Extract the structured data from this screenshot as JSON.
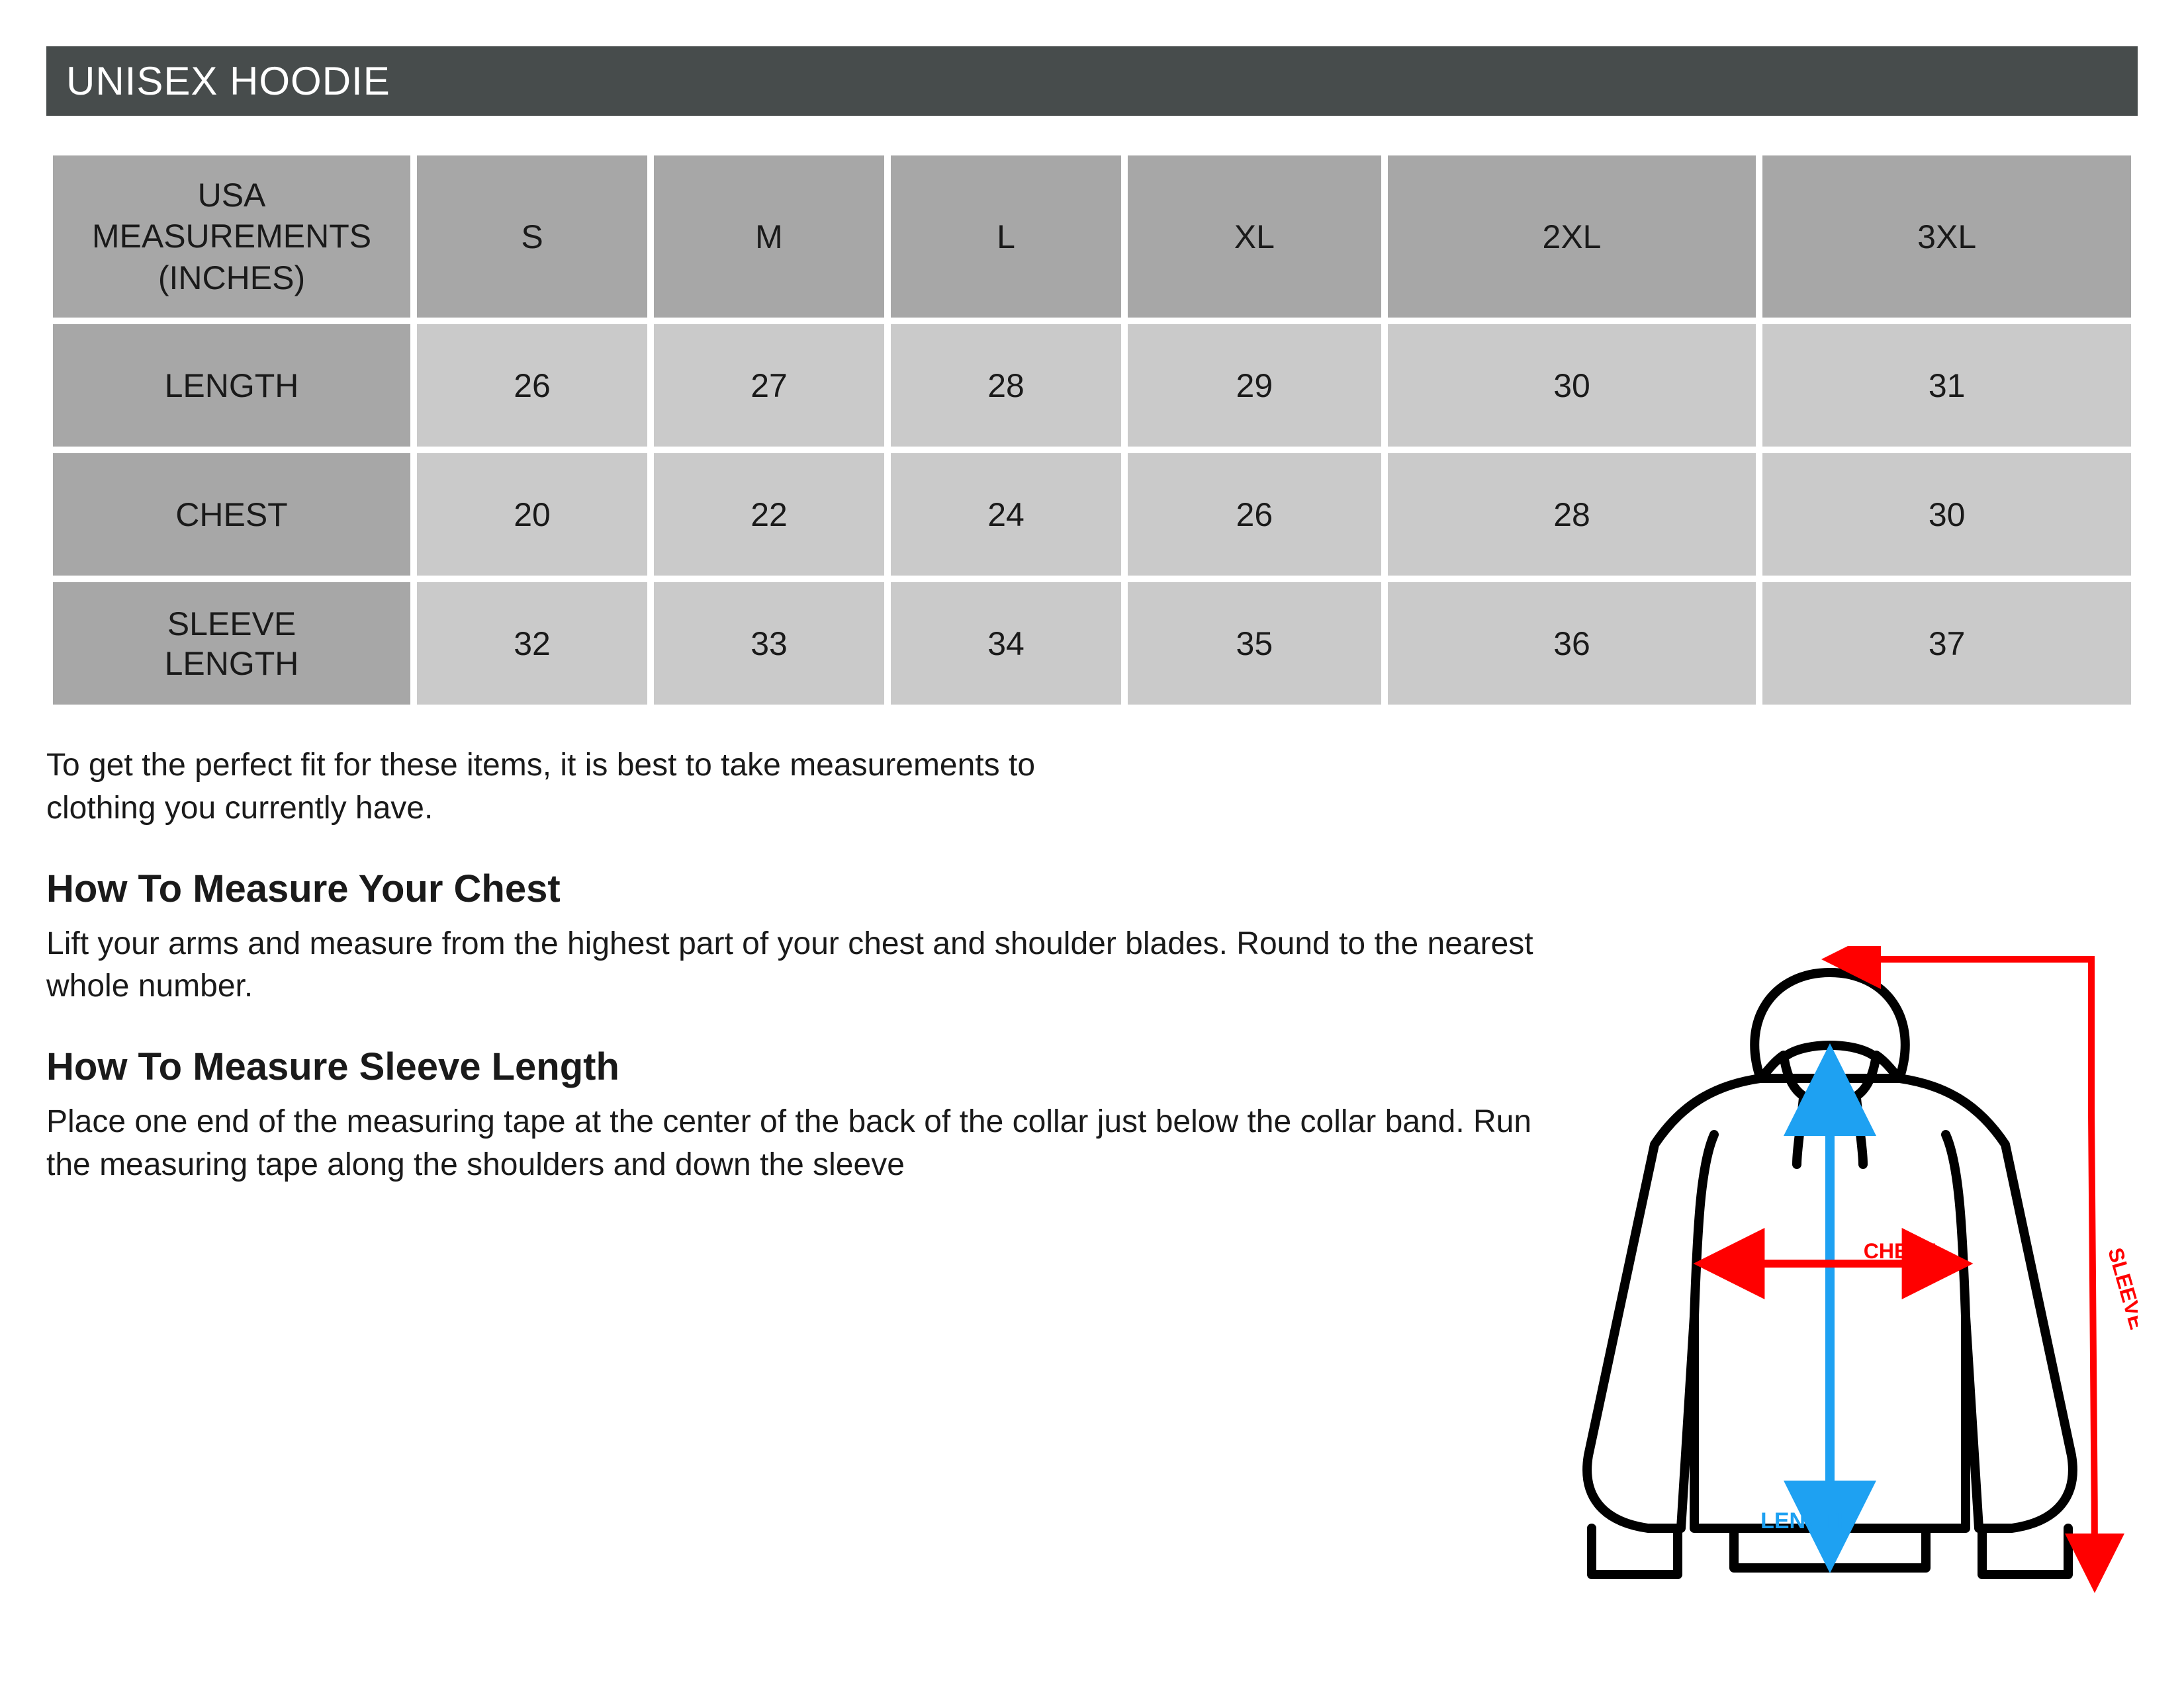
{
  "title": "UNISEX HOODIE",
  "table": {
    "header_label": "USA\nMEASUREMENTS\n(INCHES)",
    "sizes": [
      "S",
      "M",
      "L",
      "XL",
      "2XL",
      "3XL"
    ],
    "rows": [
      {
        "label": "LENGTH",
        "values": [
          "26",
          "27",
          "28",
          "29",
          "30",
          "31"
        ]
      },
      {
        "label": "CHEST",
        "values": [
          "20",
          "22",
          "24",
          "26",
          "28",
          "30"
        ]
      },
      {
        "label": "SLEEVE\nLENGTH",
        "values": [
          "32",
          "33",
          "34",
          "35",
          "36",
          "37"
        ]
      }
    ],
    "header_bg": "#a7a7a7",
    "body_bg": "#cacaca"
  },
  "intro": "To get the perfect fit for these items, it is best to take measurements to clothing you currently have.",
  "sections": [
    {
      "heading": "How To Measure Your Chest",
      "body": "Lift your arms and measure from the highest part of your chest and shoulder blades. Round to the nearest whole number."
    },
    {
      "heading": "How To Measure Sleeve Length",
      "body": "Place one end of the measuring tape at the center of the back of the collar just below the collar band. Run the measuring tape along the shoulders and down the sleeve"
    }
  ],
  "diagram": {
    "length_label": "LENGTH",
    "chest_label": "CHEST",
    "sleeve_label": "SLEEVE",
    "length_color": "#1ea1f2",
    "chest_color": "#ff0000",
    "sleeve_color": "#ff0000",
    "outline_color": "#000000",
    "label_fontsize": 30
  },
  "colors": {
    "title_bg": "#474c4c",
    "title_fg": "#ffffff",
    "page_bg": "#ffffff",
    "text": "#1a1a1a"
  }
}
